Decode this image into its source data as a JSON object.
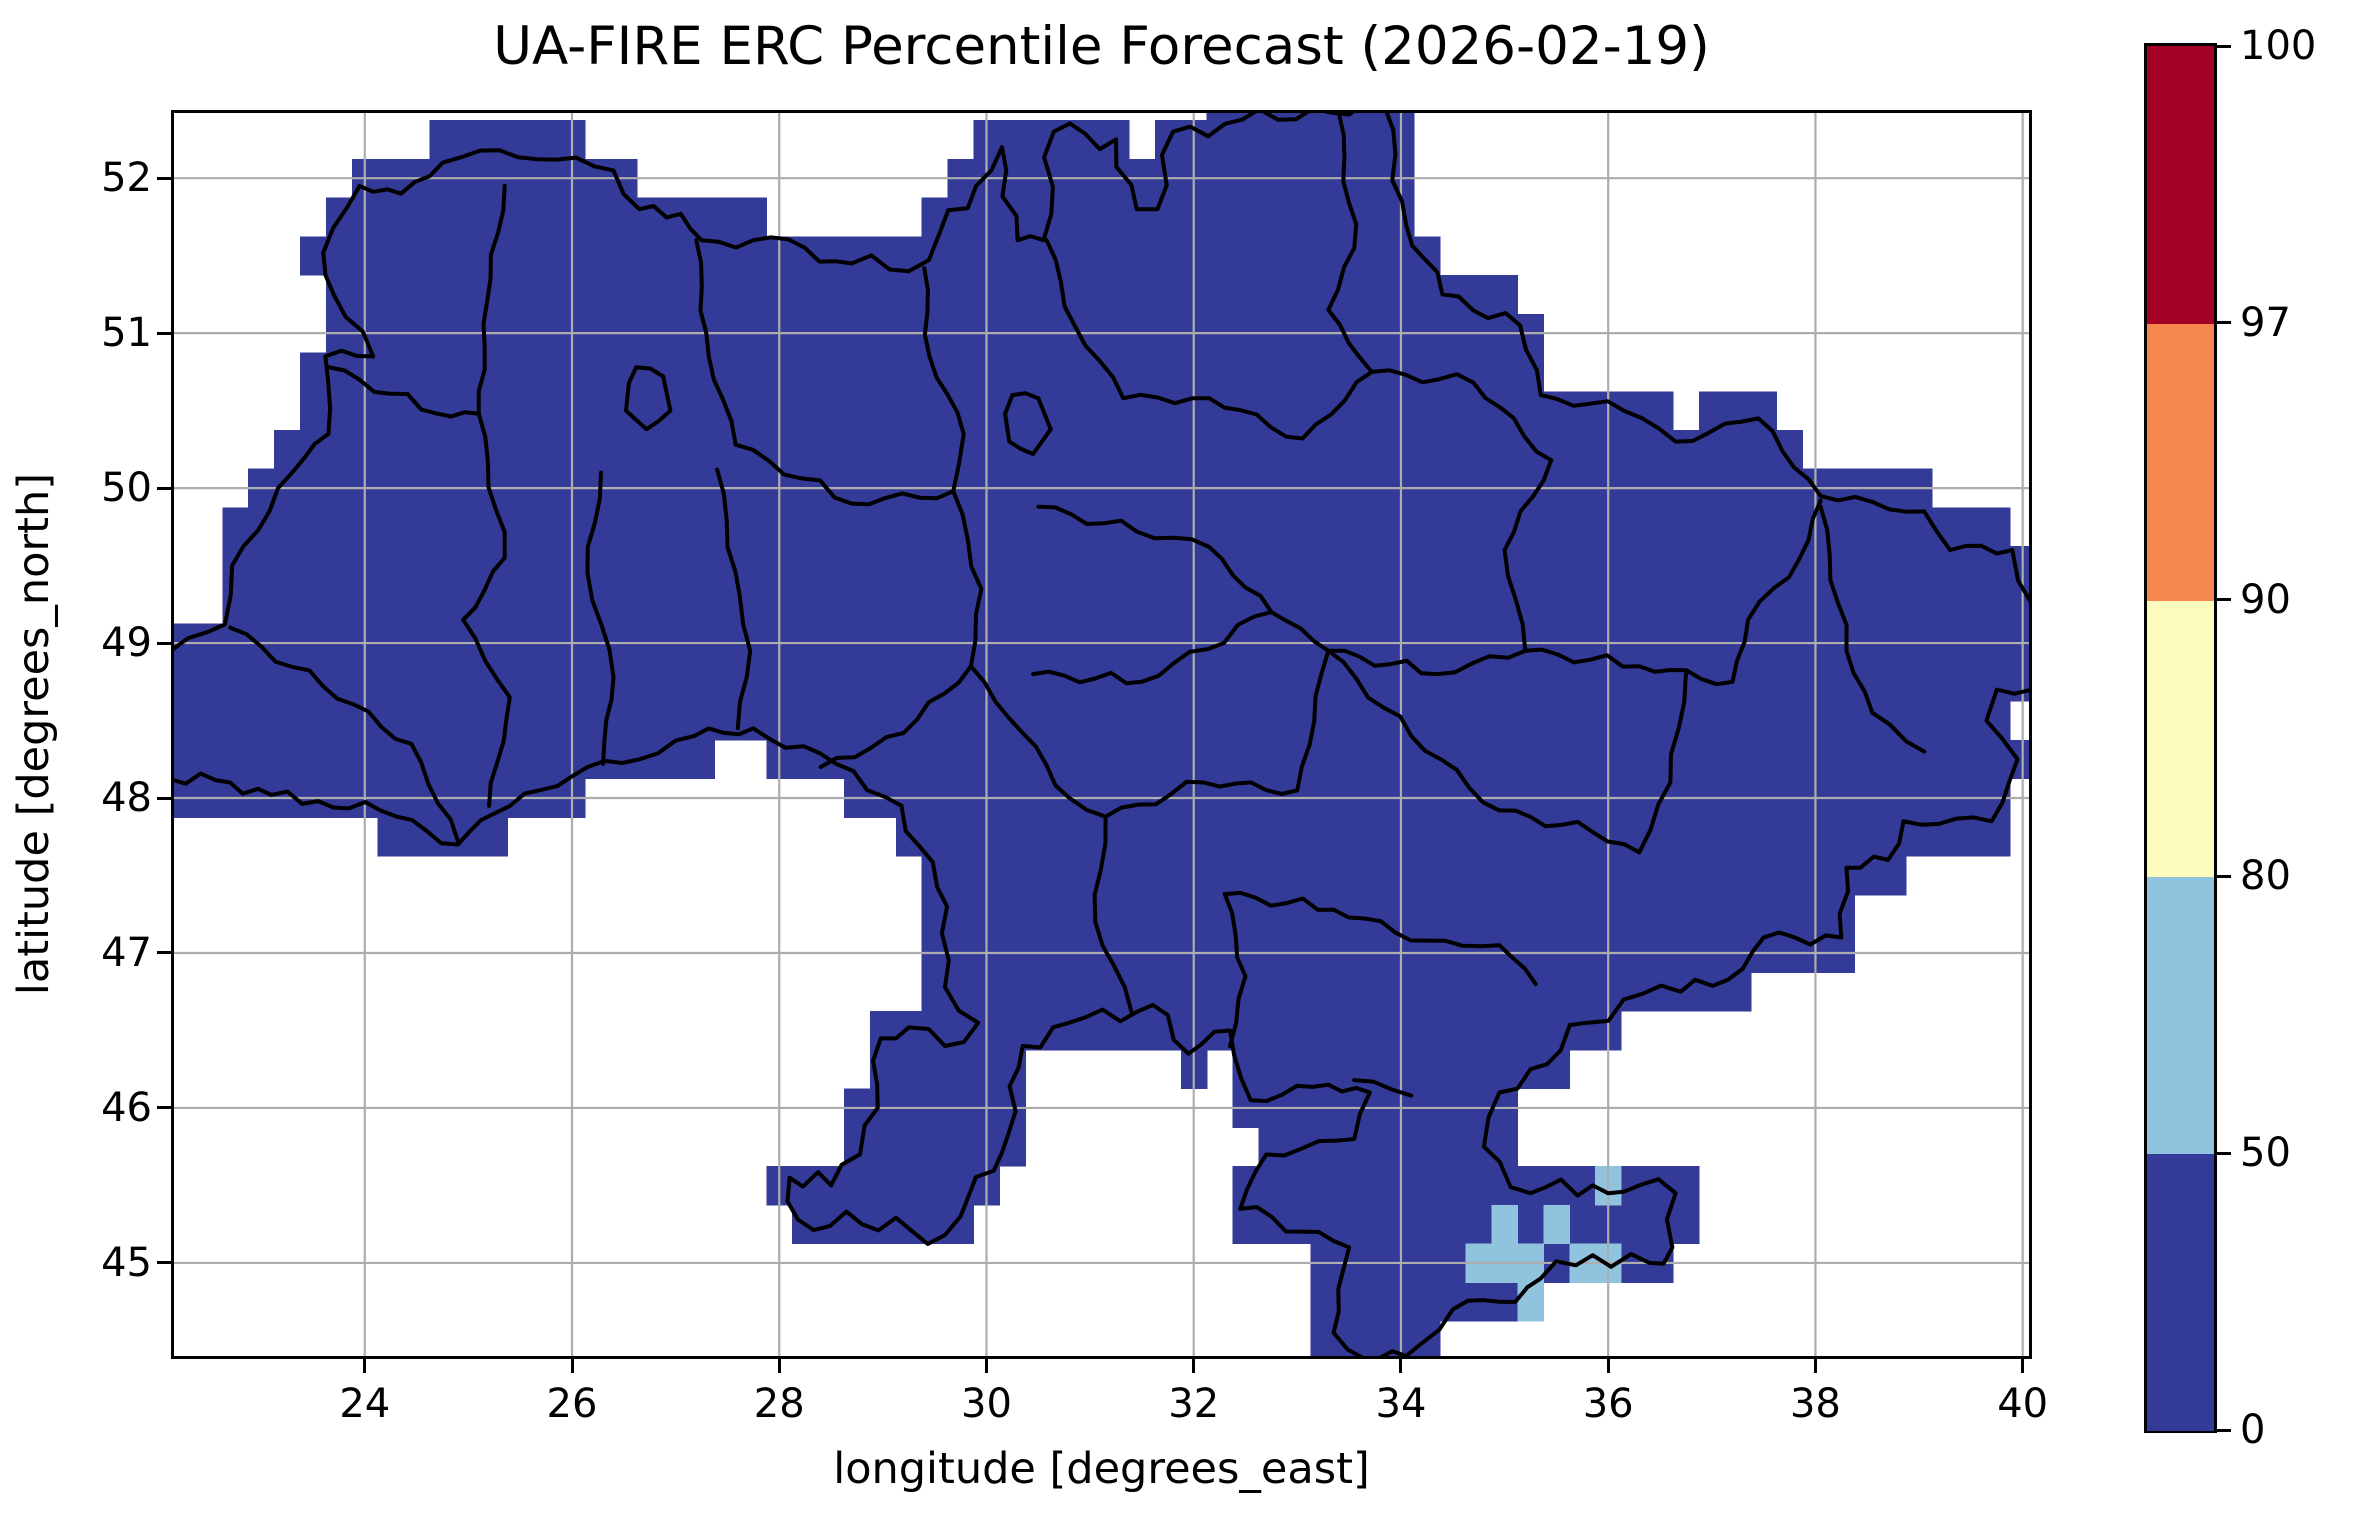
{
  "figure": {
    "title": "UA-FIRE ERC Percentile Forecast (2026-02-19)"
  },
  "chart_data": {
    "type": "heatmap",
    "title": "UA-FIRE ERC Percentile Forecast (2026-02-19)",
    "xlabel": "longitude [degrees_east]",
    "ylabel": "latitude [degrees_north]",
    "x_ticks": [
      24,
      26,
      28,
      30,
      32,
      34,
      36,
      38,
      40
    ],
    "y_ticks": [
      45,
      46,
      47,
      48,
      49,
      50,
      51,
      52
    ],
    "extent": {
      "lon_min": 22.13,
      "lon_max": 40.09,
      "lat_min": 44.38,
      "lat_max": 52.44
    },
    "grid": "on",
    "grid_step_deg": 0.25,
    "legend_position": "right",
    "colorbar": {
      "levels": [
        0,
        50,
        80,
        90,
        97,
        100
      ],
      "tick_labels": [
        "0",
        "50",
        "80",
        "90",
        "97",
        "100"
      ],
      "segment_colors": [
        "#333a97",
        "#8fc3de",
        "#fdfcbf",
        "#f5874f",
        "#a50126"
      ]
    },
    "colors": {
      "fill_0_50": "#333a97",
      "cell_50_80": "#8fc3de",
      "gridline": "#adadad",
      "border": "#000000",
      "background": "#ffffff"
    },
    "dominant_value_band": "0-50",
    "cells_50_80_centers": [
      [
        35.0,
        45.25
      ],
      [
        35.5,
        45.25
      ],
      [
        36.0,
        45.5
      ],
      [
        34.75,
        45.0
      ],
      [
        35.0,
        45.0
      ],
      [
        35.25,
        45.0
      ],
      [
        35.75,
        45.0
      ],
      [
        36.0,
        45.0
      ],
      [
        35.25,
        44.75
      ]
    ],
    "country_outline": [
      [
        23.6,
        51.52
      ],
      [
        23.95,
        51.95
      ],
      [
        24.35,
        51.9
      ],
      [
        24.75,
        52.1
      ],
      [
        25.3,
        52.18
      ],
      [
        25.85,
        52.12
      ],
      [
        26.4,
        52.05
      ],
      [
        26.65,
        51.8
      ],
      [
        27.05,
        51.77
      ],
      [
        27.25,
        51.6
      ],
      [
        27.75,
        51.6
      ],
      [
        28.25,
        51.55
      ],
      [
        28.7,
        51.45
      ],
      [
        29.25,
        51.4
      ],
      [
        29.55,
        51.65
      ],
      [
        29.9,
        51.95
      ],
      [
        30.15,
        52.2
      ],
      [
        30.3,
        51.6
      ],
      [
        30.55,
        51.6
      ],
      [
        30.65,
        52.3
      ],
      [
        31.25,
        52.25
      ],
      [
        31.45,
        51.8
      ],
      [
        31.65,
        51.8
      ],
      [
        31.8,
        52.3
      ],
      [
        32.3,
        52.35
      ],
      [
        33.15,
        52.45
      ],
      [
        33.85,
        52.45
      ],
      [
        34.05,
        51.7
      ],
      [
        34.4,
        51.25
      ],
      [
        35.15,
        51.05
      ],
      [
        35.35,
        50.6
      ],
      [
        36.15,
        50.5
      ],
      [
        36.65,
        50.3
      ],
      [
        37.45,
        50.45
      ],
      [
        38.05,
        49.95
      ],
      [
        39.05,
        49.85
      ],
      [
        39.3,
        49.6
      ],
      [
        39.9,
        49.6
      ],
      [
        40.09,
        49.25
      ],
      [
        40.09,
        48.7
      ],
      [
        39.75,
        48.7
      ],
      [
        39.65,
        48.5
      ],
      [
        39.95,
        48.25
      ],
      [
        39.7,
        47.85
      ],
      [
        38.85,
        47.85
      ],
      [
        38.7,
        47.6
      ],
      [
        38.3,
        47.55
      ],
      [
        38.25,
        47.1
      ],
      [
        37.5,
        47.1
      ],
      [
        37.3,
        46.9
      ],
      [
        36.7,
        46.75
      ],
      [
        36.15,
        46.7
      ],
      [
        35.8,
        46.55
      ],
      [
        35.25,
        46.25
      ],
      [
        34.95,
        46.1
      ],
      [
        34.8,
        45.75
      ],
      [
        35.25,
        45.45
      ],
      [
        35.85,
        45.5
      ],
      [
        36.3,
        45.5
      ],
      [
        36.65,
        45.45
      ],
      [
        36.62,
        45.1
      ],
      [
        36.4,
        45.0
      ],
      [
        35.85,
        45.05
      ],
      [
        35.35,
        44.9
      ],
      [
        34.95,
        44.75
      ],
      [
        34.5,
        44.7
      ],
      [
        34.05,
        44.4
      ],
      [
        33.65,
        44.38
      ],
      [
        33.35,
        44.55
      ],
      [
        33.5,
        45.1
      ],
      [
        32.45,
        45.35
      ],
      [
        32.7,
        45.7
      ],
      [
        33.55,
        45.8
      ],
      [
        33.7,
        46.1
      ],
      [
        33.3,
        46.15
      ],
      [
        32.55,
        46.05
      ],
      [
        32.35,
        46.5
      ],
      [
        31.95,
        46.35
      ],
      [
        31.75,
        46.6
      ],
      [
        31.45,
        46.62
      ],
      [
        30.8,
        46.55
      ],
      [
        30.35,
        46.4
      ],
      [
        30.22,
        45.85
      ],
      [
        29.75,
        45.3
      ],
      [
        29.6,
        45.18
      ],
      [
        28.8,
        45.25
      ],
      [
        28.18,
        45.28
      ],
      [
        28.1,
        45.55
      ],
      [
        28.5,
        45.5
      ],
      [
        28.95,
        46.0
      ],
      [
        28.98,
        46.45
      ],
      [
        29.25,
        46.52
      ],
      [
        29.6,
        46.4
      ],
      [
        29.92,
        46.55
      ],
      [
        29.6,
        46.78
      ],
      [
        29.62,
        47.3
      ],
      [
        29.18,
        47.95
      ],
      [
        28.55,
        48.22
      ],
      [
        27.75,
        48.45
      ],
      [
        27.18,
        48.4
      ],
      [
        26.65,
        48.25
      ],
      [
        26.15,
        48.2
      ],
      [
        25.25,
        47.9
      ],
      [
        24.9,
        47.7
      ],
      [
        24.15,
        47.92
      ],
      [
        23.55,
        47.98
      ],
      [
        23.1,
        48.02
      ],
      [
        22.7,
        48.1
      ],
      [
        22.13,
        48.12
      ],
      [
        22.13,
        48.95
      ],
      [
        22.65,
        49.12
      ],
      [
        22.72,
        49.5
      ],
      [
        23.3,
        50.1
      ],
      [
        23.65,
        50.35
      ],
      [
        23.62,
        50.85
      ],
      [
        24.08,
        50.85
      ],
      [
        23.7,
        51.25
      ]
    ],
    "region_borders": [
      [
        [
          25.35,
          51.95
        ],
        [
          25.18,
          51.2
        ],
        [
          25.1,
          50.48
        ]
      ],
      [
        [
          27.2,
          51.6
        ],
        [
          27.32,
          50.85
        ],
        [
          27.58,
          50.28
        ]
      ],
      [
        [
          29.4,
          51.42
        ],
        [
          29.45,
          50.85
        ],
        [
          29.78,
          50.35
        ],
        [
          29.68,
          49.98
        ]
      ],
      [
        [
          30.58,
          51.6
        ],
        [
          30.85,
          51.05
        ],
        [
          31.32,
          50.58
        ]
      ],
      [
        [
          31.32,
          50.58
        ],
        [
          32.15,
          50.58
        ],
        [
          33.05,
          50.32
        ],
        [
          33.72,
          50.75
        ]
      ],
      [
        [
          33.4,
          52.42
        ],
        [
          33.55,
          51.55
        ],
        [
          33.3,
          51.15
        ],
        [
          33.72,
          50.75
        ]
      ],
      [
        [
          33.72,
          50.75
        ],
        [
          34.7,
          50.68
        ],
        [
          35.45,
          50.18
        ]
      ],
      [
        [
          23.65,
          50.78
        ],
        [
          24.7,
          50.48
        ],
        [
          25.1,
          50.48
        ]
      ],
      [
        [
          25.1,
          50.48
        ],
        [
          25.35,
          49.55
        ],
        [
          24.95,
          49.15
        ],
        [
          25.4,
          48.65
        ],
        [
          25.2,
          47.95
        ]
      ],
      [
        [
          22.7,
          49.1
        ],
        [
          23.6,
          48.72
        ],
        [
          24.45,
          48.35
        ],
        [
          24.9,
          47.72
        ]
      ],
      [
        [
          26.28,
          50.1
        ],
        [
          26.15,
          49.45
        ],
        [
          26.4,
          48.78
        ],
        [
          26.3,
          48.22
        ]
      ],
      [
        [
          27.4,
          50.12
        ],
        [
          27.62,
          49.3
        ],
        [
          27.72,
          48.95
        ],
        [
          27.6,
          48.45
        ]
      ],
      [
        [
          27.58,
          50.28
        ],
        [
          28.7,
          49.9
        ],
        [
          29.68,
          49.98
        ]
      ],
      [
        [
          29.68,
          49.98
        ],
        [
          29.95,
          49.35
        ],
        [
          29.85,
          48.85
        ],
        [
          30.35,
          48.42
        ]
      ],
      [
        [
          29.85,
          48.85
        ],
        [
          29.2,
          48.42
        ],
        [
          28.4,
          48.2
        ]
      ],
      [
        [
          30.5,
          49.88
        ],
        [
          31.45,
          49.72
        ],
        [
          32.15,
          49.62
        ],
        [
          32.75,
          49.2
        ],
        [
          33.3,
          48.95
        ]
      ],
      [
        [
          30.45,
          48.8
        ],
        [
          31.5,
          48.75
        ],
        [
          32.75,
          49.2
        ]
      ],
      [
        [
          30.35,
          48.42
        ],
        [
          30.8,
          48.0
        ],
        [
          31.15,
          47.88
        ]
      ],
      [
        [
          31.15,
          47.88
        ],
        [
          32.1,
          48.1
        ],
        [
          33.0,
          48.05
        ],
        [
          33.3,
          48.95
        ]
      ],
      [
        [
          33.3,
          48.95
        ],
        [
          34.35,
          48.8
        ],
        [
          35.2,
          48.95
        ]
      ],
      [
        [
          35.45,
          50.18
        ],
        [
          35.0,
          49.6
        ],
        [
          35.2,
          48.95
        ]
      ],
      [
        [
          35.2,
          48.95
        ],
        [
          36.3,
          48.85
        ],
        [
          37.2,
          48.75
        ],
        [
          37.35,
          49.15
        ]
      ],
      [
        [
          37.35,
          49.15
        ],
        [
          37.85,
          49.55
        ],
        [
          38.05,
          49.92
        ]
      ],
      [
        [
          36.75,
          48.8
        ],
        [
          36.6,
          48.1
        ],
        [
          36.3,
          47.65
        ]
      ],
      [
        [
          38.05,
          49.88
        ],
        [
          38.3,
          48.95
        ],
        [
          38.55,
          48.55
        ],
        [
          39.05,
          48.3
        ]
      ],
      [
        [
          34.95,
          47.92
        ],
        [
          35.85,
          47.78
        ],
        [
          36.3,
          47.65
        ]
      ],
      [
        [
          33.3,
          48.95
        ],
        [
          34.1,
          48.4
        ],
        [
          34.95,
          47.92
        ]
      ],
      [
        [
          32.3,
          47.38
        ],
        [
          33.35,
          47.28
        ],
        [
          34.25,
          47.08
        ],
        [
          34.95,
          47.05
        ],
        [
          35.3,
          46.8
        ]
      ],
      [
        [
          32.3,
          47.38
        ],
        [
          32.5,
          46.85
        ],
        [
          32.35,
          46.4
        ]
      ],
      [
        [
          31.15,
          47.88
        ],
        [
          31.05,
          47.2
        ],
        [
          31.4,
          46.62
        ]
      ],
      [
        [
          30.25,
          50.6
        ],
        [
          30.5,
          50.58
        ],
        [
          30.62,
          50.38
        ],
        [
          30.45,
          50.22
        ],
        [
          30.22,
          50.3
        ],
        [
          30.18,
          50.48
        ],
        [
          30.25,
          50.6
        ]
      ],
      [
        [
          26.62,
          50.78
        ],
        [
          26.88,
          50.72
        ],
        [
          26.95,
          50.5
        ],
        [
          26.72,
          50.38
        ],
        [
          26.52,
          50.5
        ],
        [
          26.55,
          50.68
        ],
        [
          26.62,
          50.78
        ]
      ],
      [
        [
          33.55,
          46.18
        ],
        [
          34.1,
          46.08
        ]
      ]
    ]
  }
}
